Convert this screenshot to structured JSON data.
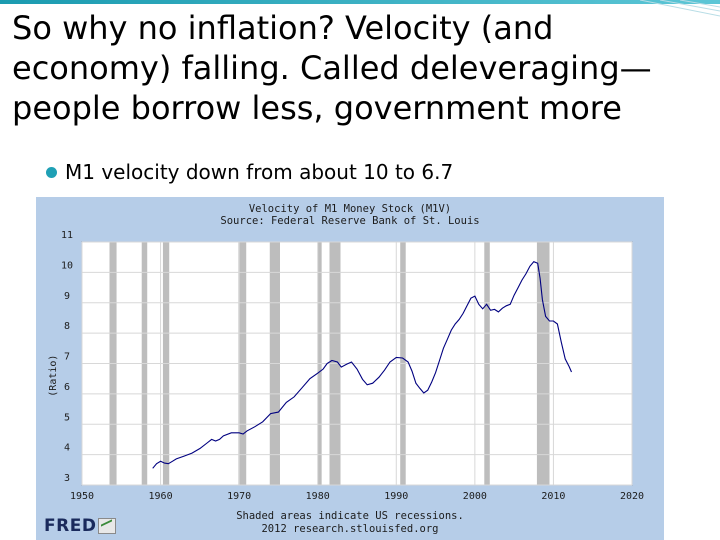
{
  "slide": {
    "title_lines": [
      "So why no inflation? Velocity (and",
      "economy) falling. Called deleveraging—",
      "people borrow less, government more"
    ],
    "bullet": "M1 velocity down from about 10 to 6.7",
    "accent_color": "#1fa0b5"
  },
  "chart_data": {
    "type": "line",
    "title": "Velocity of M1 Money Stock (M1V)",
    "subtitle": "Source: Federal Reserve Bank of St. Louis",
    "xlabel": "",
    "ylabel": "(Ratio)",
    "xlim": [
      1950,
      2020
    ],
    "ylim": [
      3,
      11
    ],
    "x_ticks": [
      1950,
      1960,
      1970,
      1980,
      1990,
      2000,
      2010,
      2020
    ],
    "y_ticks": [
      3,
      4,
      5,
      6,
      7,
      8,
      9,
      10,
      11
    ],
    "grid": true,
    "recessions": [
      [
        1953.5,
        1954.4
      ],
      [
        1957.6,
        1958.3
      ],
      [
        1960.3,
        1961.1
      ],
      [
        1969.9,
        1970.9
      ],
      [
        1973.9,
        1975.2
      ],
      [
        1980.0,
        1980.5
      ],
      [
        1981.5,
        1982.9
      ],
      [
        1990.5,
        1991.2
      ],
      [
        2001.2,
        2001.9
      ],
      [
        2007.9,
        2009.5
      ]
    ],
    "series": [
      {
        "color": "#000080",
        "points": [
          [
            1959.0,
            3.55
          ],
          [
            1959.5,
            3.7
          ],
          [
            1960.0,
            3.78
          ],
          [
            1960.5,
            3.72
          ],
          [
            1961.0,
            3.7
          ],
          [
            1961.5,
            3.78
          ],
          [
            1962.0,
            3.86
          ],
          [
            1963.0,
            3.95
          ],
          [
            1964.0,
            4.05
          ],
          [
            1965.0,
            4.2
          ],
          [
            1966.0,
            4.4
          ],
          [
            1966.5,
            4.5
          ],
          [
            1967.0,
            4.45
          ],
          [
            1967.5,
            4.5
          ],
          [
            1968.0,
            4.62
          ],
          [
            1969.0,
            4.72
          ],
          [
            1970.0,
            4.72
          ],
          [
            1970.5,
            4.68
          ],
          [
            1971.0,
            4.78
          ],
          [
            1972.0,
            4.92
          ],
          [
            1973.0,
            5.08
          ],
          [
            1974.0,
            5.35
          ],
          [
            1975.0,
            5.4
          ],
          [
            1976.0,
            5.72
          ],
          [
            1977.0,
            5.9
          ],
          [
            1978.0,
            6.2
          ],
          [
            1979.0,
            6.5
          ],
          [
            1980.0,
            6.68
          ],
          [
            1980.7,
            6.82
          ],
          [
            1981.2,
            7.0
          ],
          [
            1981.8,
            7.1
          ],
          [
            1982.5,
            7.05
          ],
          [
            1983.0,
            6.88
          ],
          [
            1983.7,
            6.98
          ],
          [
            1984.3,
            7.05
          ],
          [
            1985.0,
            6.82
          ],
          [
            1985.7,
            6.48
          ],
          [
            1986.3,
            6.3
          ],
          [
            1987.0,
            6.35
          ],
          [
            1987.8,
            6.55
          ],
          [
            1988.5,
            6.78
          ],
          [
            1989.2,
            7.05
          ],
          [
            1990.0,
            7.2
          ],
          [
            1990.8,
            7.18
          ],
          [
            1991.5,
            7.05
          ],
          [
            1992.0,
            6.75
          ],
          [
            1992.5,
            6.35
          ],
          [
            1993.0,
            6.18
          ],
          [
            1993.5,
            6.03
          ],
          [
            1994.0,
            6.12
          ],
          [
            1994.5,
            6.38
          ],
          [
            1995.0,
            6.7
          ],
          [
            1995.5,
            7.1
          ],
          [
            1996.0,
            7.5
          ],
          [
            1996.5,
            7.8
          ],
          [
            1997.0,
            8.1
          ],
          [
            1997.5,
            8.3
          ],
          [
            1998.0,
            8.45
          ],
          [
            1998.5,
            8.65
          ],
          [
            1999.0,
            8.9
          ],
          [
            1999.5,
            9.15
          ],
          [
            2000.0,
            9.22
          ],
          [
            2000.5,
            8.95
          ],
          [
            2001.0,
            8.8
          ],
          [
            2001.5,
            8.95
          ],
          [
            2002.0,
            8.75
          ],
          [
            2002.5,
            8.78
          ],
          [
            2003.0,
            8.7
          ],
          [
            2003.5,
            8.82
          ],
          [
            2004.0,
            8.9
          ],
          [
            2004.5,
            8.95
          ],
          [
            2005.0,
            9.25
          ],
          [
            2005.5,
            9.5
          ],
          [
            2006.0,
            9.75
          ],
          [
            2006.5,
            9.95
          ],
          [
            2007.0,
            10.2
          ],
          [
            2007.5,
            10.35
          ],
          [
            2008.0,
            10.3
          ],
          [
            2008.3,
            9.8
          ],
          [
            2008.6,
            9.1
          ],
          [
            2009.0,
            8.55
          ],
          [
            2009.5,
            8.4
          ],
          [
            2010.0,
            8.4
          ],
          [
            2010.5,
            8.3
          ],
          [
            2011.0,
            7.7
          ],
          [
            2011.5,
            7.15
          ],
          [
            2012.0,
            6.9
          ],
          [
            2012.3,
            6.72
          ]
        ]
      }
    ]
  },
  "chart_footer": {
    "line1": "Shaded areas indicate US recessions.",
    "line2": "2012 research.stlouisfed.org",
    "logo": "FRED"
  }
}
